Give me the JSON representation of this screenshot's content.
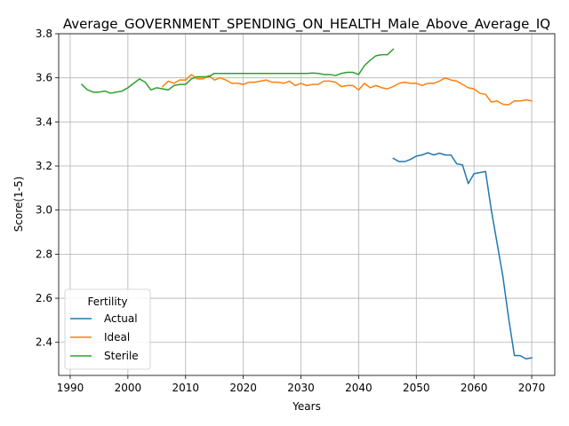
{
  "chart_data": {
    "type": "line",
    "title": "Average_GOVERNMENT_SPENDING_ON_HEALTH_Male_Above_Average_IQ",
    "xlabel": "Years",
    "ylabel": "Score(1-5)",
    "xlim": [
      1988,
      2074
    ],
    "ylim": [
      2.25,
      3.8
    ],
    "xticks": [
      1990,
      2000,
      2010,
      2020,
      2030,
      2040,
      2050,
      2060,
      2070
    ],
    "yticks": [
      2.4,
      2.6,
      2.8,
      3.0,
      3.2,
      3.4,
      3.6,
      3.8
    ],
    "xtick_labels": [
      "1990",
      "2000",
      "2010",
      "2020",
      "2030",
      "2040",
      "2050",
      "2060",
      "2070"
    ],
    "ytick_labels": [
      "2.4",
      "2.6",
      "2.8",
      "3.0",
      "3.2",
      "3.4",
      "3.6",
      "3.8"
    ],
    "grid": true,
    "legend": {
      "title": "Fertility",
      "placement": "lower-left"
    },
    "series": [
      {
        "name": "Actual",
        "color": "#1f77b4",
        "x": [
          2046,
          2047,
          2048,
          2049,
          2050,
          2051,
          2052,
          2053,
          2054,
          2055,
          2056,
          2057,
          2058,
          2059,
          2060,
          2061,
          2062,
          2063,
          2064,
          2065,
          2066,
          2067,
          2068,
          2069,
          2070
        ],
        "values": [
          3.235,
          3.22,
          3.22,
          3.23,
          3.245,
          3.25,
          3.26,
          3.25,
          3.258,
          3.25,
          3.25,
          3.21,
          3.205,
          3.12,
          3.165,
          3.17,
          3.175,
          3.0,
          2.85,
          2.7,
          2.51,
          2.34,
          2.34,
          2.325,
          2.33
        ]
      },
      {
        "name": "Ideal",
        "color": "#ff7f0e",
        "x": [
          2006,
          2007,
          2008,
          2009,
          2010,
          2011,
          2012,
          2013,
          2014,
          2015,
          2016,
          2017,
          2018,
          2019,
          2020,
          2021,
          2022,
          2023,
          2024,
          2025,
          2026,
          2027,
          2028,
          2029,
          2030,
          2031,
          2032,
          2033,
          2034,
          2035,
          2036,
          2037,
          2038,
          2039,
          2040,
          2041,
          2042,
          2043,
          2044,
          2045,
          2046,
          2047,
          2048,
          2049,
          2050,
          2051,
          2052,
          2053,
          2054,
          2055,
          2056,
          2057,
          2058,
          2059,
          2060,
          2061,
          2062,
          2063,
          2064,
          2065,
          2066,
          2067,
          2068,
          2069,
          2070
        ],
        "values": [
          3.56,
          3.585,
          3.575,
          3.59,
          3.59,
          3.615,
          3.595,
          3.595,
          3.61,
          3.59,
          3.6,
          3.59,
          3.575,
          3.575,
          3.57,
          3.58,
          3.58,
          3.585,
          3.59,
          3.58,
          3.58,
          3.575,
          3.585,
          3.565,
          3.575,
          3.565,
          3.57,
          3.57,
          3.585,
          3.585,
          3.58,
          3.56,
          3.565,
          3.565,
          3.545,
          3.575,
          3.555,
          3.565,
          3.555,
          3.55,
          3.56,
          3.575,
          3.58,
          3.575,
          3.575,
          3.565,
          3.575,
          3.575,
          3.585,
          3.6,
          3.59,
          3.585,
          3.57,
          3.555,
          3.55,
          3.53,
          3.525,
          3.49,
          3.495,
          3.48,
          3.478,
          3.495,
          3.495,
          3.5,
          3.495
        ]
      },
      {
        "name": "Sterile",
        "color": "#2ca02c",
        "x": [
          1992,
          1993,
          1994,
          1995,
          1996,
          1997,
          1998,
          1999,
          2000,
          2001,
          2002,
          2003,
          2004,
          2005,
          2006,
          2007,
          2008,
          2009,
          2010,
          2011,
          2012,
          2013,
          2014,
          2015,
          2016,
          2017,
          2018,
          2019,
          2020,
          2021,
          2022,
          2023,
          2024,
          2025,
          2026,
          2027,
          2028,
          2029,
          2030,
          2031,
          2032,
          2033,
          2034,
          2035,
          2036,
          2037,
          2038,
          2039,
          2040,
          2041,
          2042,
          2043,
          2044,
          2045,
          2046
        ],
        "values": [
          3.57,
          3.545,
          3.535,
          3.535,
          3.54,
          3.53,
          3.535,
          3.54,
          3.555,
          3.575,
          3.595,
          3.58,
          3.545,
          3.555,
          3.55,
          3.545,
          3.565,
          3.57,
          3.57,
          3.595,
          3.605,
          3.605,
          3.605,
          3.62,
          3.62,
          3.62,
          3.62,
          3.62,
          3.62,
          3.62,
          3.62,
          3.62,
          3.62,
          3.62,
          3.62,
          3.62,
          3.62,
          3.62,
          3.62,
          3.62,
          3.622,
          3.62,
          3.615,
          3.615,
          3.61,
          3.62,
          3.625,
          3.625,
          3.615,
          3.655,
          3.68,
          3.7,
          3.705,
          3.705,
          3.73
        ]
      }
    ]
  }
}
